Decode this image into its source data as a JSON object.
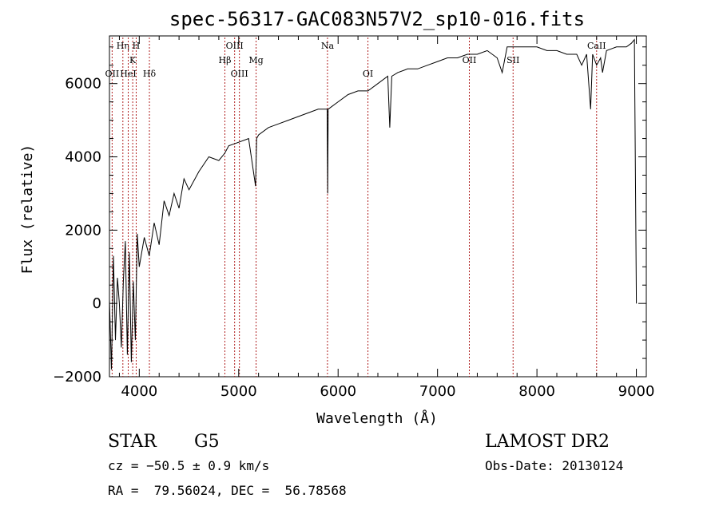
{
  "chart_data": {
    "type": "line",
    "title": "spec-56317-GAC083N57V2_sp10-016.fits",
    "xlabel": "Wavelength (Å)",
    "ylabel": "Flux (relative)",
    "xlim": [
      3700,
      9100
    ],
    "ylim": [
      -2000,
      7300
    ],
    "x_ticks": [
      4000,
      5000,
      6000,
      7000,
      8000,
      9000
    ],
    "y_ticks": [
      -2000,
      0,
      2000,
      4000,
      6000
    ],
    "x_tick_labels": [
      "4000",
      "5000",
      "6000",
      "7000",
      "8000",
      "9000"
    ],
    "y_tick_labels": [
      "−2000",
      "0",
      "2000",
      "4000",
      "6000"
    ],
    "grid": false,
    "series": [
      {
        "color": "#000000",
        "x": [
          3700,
          3720,
          3740,
          3760,
          3780,
          3800,
          3820,
          3840,
          3860,
          3880,
          3900,
          3920,
          3940,
          3960,
          3980,
          4000,
          4050,
          4100,
          4150,
          4200,
          4250,
          4300,
          4350,
          4400,
          4450,
          4500,
          4600,
          4700,
          4800,
          4860,
          4900,
          5000,
          5100,
          5170,
          5180,
          5200,
          5300,
          5400,
          5500,
          5600,
          5700,
          5800,
          5890,
          5895,
          5900,
          6000,
          6100,
          6200,
          6300,
          6400,
          6500,
          6520,
          6540,
          6600,
          6700,
          6800,
          6900,
          7000,
          7100,
          7200,
          7300,
          7400,
          7500,
          7600,
          7650,
          7700,
          7800,
          7900,
          8000,
          8100,
          8200,
          8300,
          8400,
          8450,
          8500,
          8540,
          8560,
          8600,
          8640,
          8660,
          8700,
          8800,
          8900,
          8950,
          8980,
          9000
        ],
        "y": [
          100,
          -1800,
          1300,
          -1000,
          700,
          0,
          -1200,
          600,
          1700,
          -1400,
          1400,
          -1600,
          600,
          -1000,
          1900,
          1000,
          1800,
          1300,
          2200,
          1600,
          2800,
          2400,
          3000,
          2600,
          3400,
          3100,
          3600,
          4000,
          3900,
          4100,
          4300,
          4400,
          4500,
          3200,
          4500,
          4600,
          4800,
          4900,
          5000,
          5100,
          5200,
          5300,
          5300,
          3000,
          5300,
          5500,
          5700,
          5800,
          5800,
          6000,
          6200,
          4800,
          6200,
          6300,
          6400,
          6400,
          6500,
          6600,
          6700,
          6700,
          6800,
          6800,
          6900,
          6700,
          6300,
          7000,
          7000,
          7000,
          7000,
          6900,
          6900,
          6800,
          6800,
          6500,
          6800,
          5300,
          6800,
          6500,
          6700,
          6300,
          6900,
          7000,
          7000,
          7100,
          7200,
          0
        ]
      }
    ],
    "line_markers": [
      {
        "label": "OII",
        "x": 3727,
        "row": 3
      },
      {
        "label": "Hη",
        "x": 3835,
        "row": 1
      },
      {
        "label": "HeI",
        "x": 3889,
        "row": 3
      },
      {
        "label": "K",
        "x": 3934,
        "row": 2
      },
      {
        "label": "H",
        "x": 3969,
        "row": 1
      },
      {
        "label": "Hδ",
        "x": 4102,
        "row": 3
      },
      {
        "label": "Hβ",
        "x": 4861,
        "row": 2
      },
      {
        "label": "OIII",
        "x": 4959,
        "row": 1
      },
      {
        "label": "OIII",
        "x": 5007,
        "row": 3
      },
      {
        "label": "Mg",
        "x": 5175,
        "row": 2
      },
      {
        "label": "Na",
        "x": 5893,
        "row": 1
      },
      {
        "label": "OI",
        "x": 6300,
        "row": 3
      },
      {
        "label": "OII",
        "x": 7320,
        "row": 2
      },
      {
        "label": "SII",
        "x": 7760,
        "row": 2
      },
      {
        "label": "CaII",
        "x": 8600,
        "row": 1
      }
    ],
    "annotations": {
      "class": "STAR",
      "subclass": "G5",
      "survey": "LAMOST DR2",
      "cz": "cz = −50.5 ± 0.9 km/s",
      "obs_date": "Obs-Date: 20130124",
      "coords": "RA =  79.56024, DEC =  56.78568"
    }
  },
  "colors": {
    "line_marker": "#b02020",
    "spectrum": "#000000"
  }
}
